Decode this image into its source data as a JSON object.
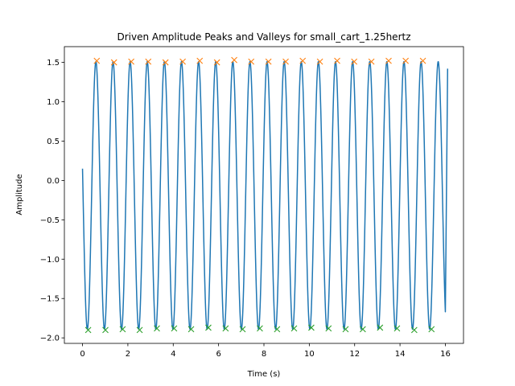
{
  "chart_data": {
    "type": "line",
    "title": "Driven Amplitude Peaks and Valleys for small_cart_1.25hertz",
    "xlabel": "Time (s)",
    "ylabel": "Amplitude",
    "xlim": [
      -0.8,
      16.8
    ],
    "ylim": [
      -2.07,
      1.7
    ],
    "x_ticks": [
      0,
      2,
      4,
      6,
      8,
      10,
      12,
      14,
      16
    ],
    "y_ticks": [
      -2.0,
      -1.5,
      -1.0,
      -0.5,
      0.0,
      0.5,
      1.0,
      1.5
    ],
    "grid": false,
    "legend": "none",
    "colors": {
      "signal": "#1f77b4",
      "peaks": "#ff7f0e",
      "valleys": "#2ca02c"
    },
    "signal": {
      "t_start": 0.0,
      "t_end": 16.1,
      "start_value": 0.15,
      "end_value": 1.42,
      "frequency_hz": 1.325,
      "center": -0.19,
      "half_amplitude": 1.7
    },
    "series": [
      {
        "marker": "x",
        "role": "peaks",
        "x": [
          0.63,
          1.39,
          2.15,
          2.9,
          3.66,
          4.42,
          5.17,
          5.93,
          6.69,
          7.44,
          8.2,
          8.96,
          9.71,
          10.47,
          11.23,
          11.98,
          12.74,
          13.5,
          14.25,
          15.01
        ],
        "y": [
          1.52,
          1.5,
          1.51,
          1.51,
          1.5,
          1.51,
          1.52,
          1.5,
          1.53,
          1.51,
          1.51,
          1.51,
          1.52,
          1.51,
          1.52,
          1.51,
          1.51,
          1.52,
          1.52,
          1.52
        ]
      },
      {
        "marker": "x",
        "role": "valleys",
        "x": [
          0.25,
          1.01,
          1.77,
          2.52,
          3.28,
          4.04,
          4.79,
          5.55,
          6.31,
          7.06,
          7.82,
          8.58,
          9.33,
          10.09,
          10.85,
          11.6,
          12.36,
          13.12,
          13.87,
          14.63,
          15.39
        ],
        "y": [
          -1.9,
          -1.9,
          -1.89,
          -1.9,
          -1.88,
          -1.88,
          -1.89,
          -1.87,
          -1.88,
          -1.89,
          -1.88,
          -1.89,
          -1.88,
          -1.87,
          -1.88,
          -1.89,
          -1.89,
          -1.87,
          -1.88,
          -1.9,
          -1.89
        ]
      }
    ]
  }
}
